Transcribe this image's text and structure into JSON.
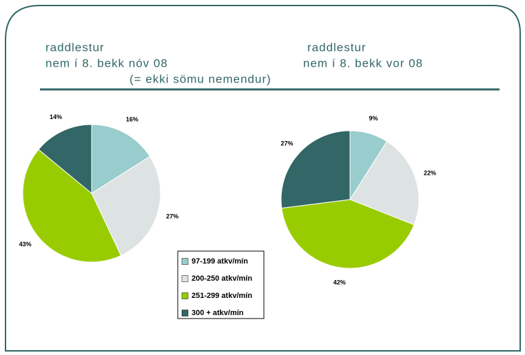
{
  "slide": {
    "note": "(= ekki sömu nemendur)"
  },
  "legend": {
    "labels": [
      "97-199 atkv/mín",
      "200-250 atkv/mín",
      "251-299 atkv/mín",
      "300 + atkv/mín"
    ],
    "colors": [
      "#99cccc",
      "#dde3e3",
      "#99cc00",
      "#336666"
    ]
  },
  "chart_data": [
    {
      "type": "pie",
      "title": [
        "raddlestur",
        "nem í 8. bekk nóv 08"
      ],
      "values": [
        16,
        27,
        43,
        14
      ],
      "value_labels": [
        "16%",
        "27%",
        "43%",
        "14%"
      ]
    },
    {
      "type": "pie",
      "title": [
        "raddlestur",
        "nem í 8. bekk vor 08"
      ],
      "values": [
        9,
        22,
        42,
        27
      ],
      "value_labels": [
        "9%",
        "22%",
        "42%",
        "27%"
      ]
    }
  ]
}
